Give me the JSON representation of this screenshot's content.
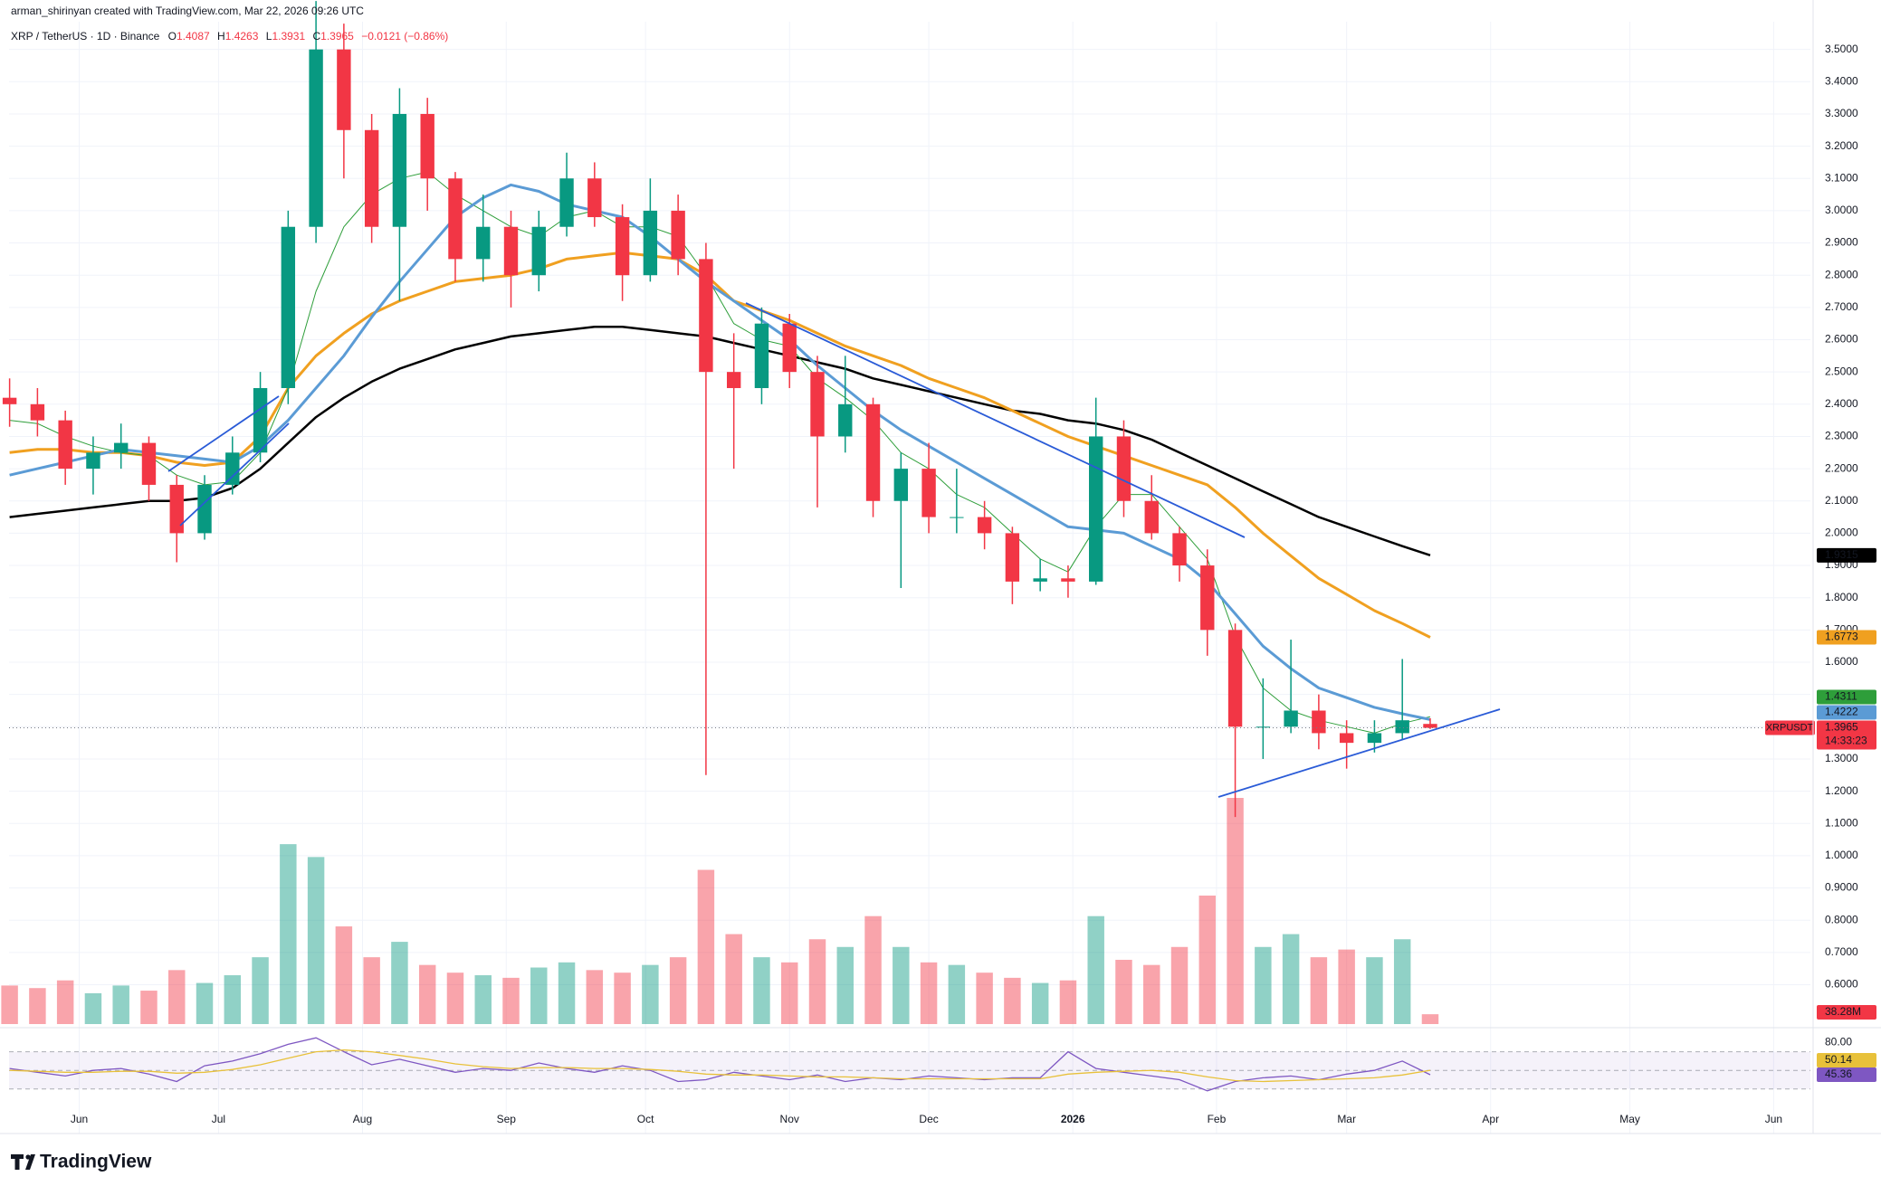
{
  "header": {
    "credit": "arman_shirinyan created with TradingView.com, Mar 22, 2026 09:26 UTC"
  },
  "footer": {
    "brand": "TradingView"
  },
  "chart_data": {
    "type": "candlestick",
    "title": "XRP / TetherUS · 1D · Binance",
    "ohlc_labels": [
      "O",
      "H",
      "L",
      "C"
    ],
    "change": "−0.0121 (−0.86%)",
    "symbol": "XRPUSDT",
    "countdown": "14:33:23",
    "up_color": "#089981",
    "down_color": "#f23645",
    "candles": {
      "open": [
        2.42,
        2.4,
        2.35,
        2.2,
        2.25,
        2.28,
        2.15,
        2.0,
        2.15,
        2.25,
        2.45,
        2.95,
        3.5,
        3.25,
        2.95,
        3.3,
        3.1,
        2.85,
        2.95,
        2.8,
        2.95,
        3.1,
        2.98,
        2.8,
        3.0,
        2.85,
        2.5,
        2.45,
        2.65,
        2.5,
        2.3,
        2.4,
        2.1,
        2.2,
        2.05,
        2.05,
        2.0,
        1.85,
        1.86,
        1.85,
        2.3,
        2.1,
        2.0,
        1.9,
        1.7,
        1.4,
        1.4,
        1.45,
        1.38,
        1.35,
        1.38,
        1.4087
      ],
      "high": [
        2.48,
        2.45,
        2.38,
        2.3,
        2.34,
        2.3,
        2.18,
        2.18,
        2.3,
        2.5,
        3.0,
        3.65,
        3.58,
        3.3,
        3.38,
        3.35,
        3.12,
        3.05,
        3.0,
        3.0,
        3.18,
        3.15,
        3.02,
        3.1,
        3.05,
        2.9,
        2.62,
        2.7,
        2.68,
        2.55,
        2.55,
        2.42,
        2.25,
        2.28,
        2.2,
        2.1,
        2.02,
        1.92,
        1.9,
        2.42,
        2.35,
        2.18,
        2.02,
        1.95,
        1.72,
        1.55,
        1.67,
        1.5,
        1.42,
        1.42,
        1.61,
        1.4263
      ],
      "low": [
        2.33,
        2.3,
        2.15,
        2.12,
        2.2,
        2.1,
        1.91,
        1.98,
        2.12,
        2.22,
        2.4,
        2.9,
        3.1,
        2.9,
        2.72,
        3.0,
        2.78,
        2.78,
        2.7,
        2.75,
        2.92,
        2.95,
        2.72,
        2.78,
        2.8,
        1.25,
        2.2,
        2.4,
        2.45,
        2.08,
        2.25,
        2.05,
        1.83,
        2.0,
        2.0,
        1.95,
        1.78,
        1.82,
        1.8,
        1.84,
        2.05,
        1.98,
        1.85,
        1.62,
        1.12,
        1.3,
        1.38,
        1.33,
        1.27,
        1.32,
        1.36,
        1.3931
      ],
      "close": [
        2.4,
        2.35,
        2.2,
        2.25,
        2.28,
        2.15,
        2.0,
        2.15,
        2.25,
        2.45,
        2.95,
        3.5,
        3.25,
        2.95,
        3.3,
        3.1,
        2.85,
        2.95,
        2.8,
        2.95,
        3.1,
        2.98,
        2.8,
        3.0,
        2.85,
        2.5,
        2.45,
        2.65,
        2.5,
        2.3,
        2.4,
        2.1,
        2.2,
        2.05,
        2.05,
        2.0,
        1.85,
        1.86,
        1.85,
        2.3,
        2.1,
        2.0,
        1.9,
        1.7,
        1.4,
        1.4,
        1.45,
        1.38,
        1.35,
        1.38,
        1.42,
        1.3965
      ]
    },
    "series": [
      {
        "color": "#000000",
        "width": 2.5,
        "values": [
          2.05,
          2.06,
          2.07,
          2.08,
          2.09,
          2.1,
          2.1,
          2.11,
          2.14,
          2.2,
          2.28,
          2.36,
          2.42,
          2.47,
          2.51,
          2.54,
          2.57,
          2.59,
          2.61,
          2.62,
          2.63,
          2.64,
          2.64,
          2.63,
          2.62,
          2.61,
          2.59,
          2.57,
          2.55,
          2.53,
          2.51,
          2.48,
          2.46,
          2.44,
          2.42,
          2.4,
          2.38,
          2.37,
          2.35,
          2.34,
          2.32,
          2.29,
          2.25,
          2.21,
          2.17,
          2.13,
          2.09,
          2.05,
          2.02,
          1.99,
          1.96,
          1.9315
        ]
      },
      {
        "color": "#f0a020",
        "width": 3,
        "values": [
          2.25,
          2.26,
          2.26,
          2.25,
          2.25,
          2.24,
          2.22,
          2.21,
          2.22,
          2.3,
          2.45,
          2.55,
          2.62,
          2.68,
          2.72,
          2.75,
          2.78,
          2.79,
          2.8,
          2.82,
          2.85,
          2.86,
          2.87,
          2.86,
          2.85,
          2.8,
          2.72,
          2.69,
          2.66,
          2.62,
          2.58,
          2.55,
          2.52,
          2.48,
          2.45,
          2.42,
          2.38,
          2.34,
          2.3,
          2.27,
          2.24,
          2.21,
          2.18,
          2.15,
          2.08,
          2.0,
          1.93,
          1.86,
          1.81,
          1.76,
          1.72,
          1.6773
        ]
      },
      {
        "color": "#2e9e3a",
        "width": 1,
        "values": [
          2.35,
          2.34,
          2.3,
          2.27,
          2.25,
          2.24,
          2.18,
          2.15,
          2.16,
          2.25,
          2.45,
          2.75,
          2.95,
          3.05,
          3.1,
          3.12,
          3.05,
          3.0,
          2.95,
          2.92,
          2.98,
          3.0,
          2.95,
          2.95,
          2.92,
          2.8,
          2.65,
          2.6,
          2.58,
          2.48,
          2.42,
          2.35,
          2.25,
          2.2,
          2.12,
          2.08,
          2.0,
          1.92,
          1.88,
          2.02,
          2.12,
          2.12,
          2.02,
          1.92,
          1.68,
          1.52,
          1.45,
          1.42,
          1.4,
          1.38,
          1.41,
          1.4311
        ]
      },
      {
        "color": "#5b9bd5",
        "width": 3,
        "values": [
          2.18,
          2.2,
          2.22,
          2.24,
          2.26,
          2.25,
          2.24,
          2.23,
          2.22,
          2.27,
          2.35,
          2.45,
          2.55,
          2.67,
          2.78,
          2.88,
          2.98,
          3.04,
          3.08,
          3.06,
          3.02,
          3.0,
          2.98,
          2.92,
          2.85,
          2.78,
          2.72,
          2.66,
          2.6,
          2.52,
          2.45,
          2.38,
          2.32,
          2.27,
          2.22,
          2.17,
          2.12,
          2.07,
          2.02,
          2.01,
          2.0,
          1.96,
          1.92,
          1.85,
          1.75,
          1.65,
          1.58,
          1.52,
          1.49,
          1.46,
          1.44,
          1.4222
        ]
      }
    ],
    "volume": {
      "values": [
        150,
        140,
        170,
        120,
        150,
        130,
        210,
        160,
        190,
        260,
        700,
        650,
        380,
        260,
        320,
        230,
        200,
        190,
        180,
        220,
        240,
        210,
        200,
        230,
        260,
        600,
        350,
        260,
        240,
        330,
        300,
        420,
        300,
        240,
        230,
        200,
        180,
        160,
        170,
        420,
        250,
        230,
        300,
        500,
        880,
        300,
        350,
        260,
        290,
        260,
        330,
        38.28
      ],
      "value_labels": [
        null,
        null,
        null,
        null,
        null,
        null,
        null,
        null,
        null,
        null,
        null,
        null,
        null,
        null,
        null,
        null,
        null,
        null,
        null,
        null,
        null,
        null,
        null,
        null,
        null,
        null,
        null,
        null,
        null,
        null,
        null,
        null,
        null,
        null,
        null,
        null,
        null,
        null,
        null,
        null,
        null,
        null,
        null,
        null,
        null,
        null,
        null,
        null,
        null,
        null,
        null,
        "38.28M"
      ]
    },
    "rsi": {
      "ylim": [
        22,
        92
      ],
      "yticks": [
        {
          "value": 80,
          "label": "80.00"
        }
      ],
      "bands": [
        70,
        50,
        30
      ],
      "series": [
        {
          "color": "#7e57c2",
          "values": [
            52,
            48,
            44,
            50,
            52,
            46,
            38,
            55,
            60,
            68,
            78,
            85,
            70,
            56,
            62,
            55,
            48,
            52,
            50,
            58,
            52,
            48,
            55,
            50,
            38,
            40,
            48,
            44,
            40,
            45,
            38,
            42,
            40,
            44,
            42,
            40,
            42,
            42,
            70,
            52,
            48,
            44,
            40,
            28,
            38,
            42,
            44,
            40,
            46,
            50,
            60,
            45.36
          ]
        },
        {
          "color": "#e8c13a",
          "values": [
            50,
            49,
            48,
            48,
            49,
            49,
            47,
            48,
            51,
            56,
            63,
            70,
            72,
            70,
            66,
            62,
            57,
            54,
            52,
            53,
            53,
            52,
            52,
            51,
            49,
            46,
            45,
            45,
            44,
            43,
            43,
            42,
            41,
            41,
            41,
            41,
            41,
            41,
            46,
            48,
            49,
            50,
            48,
            43,
            39,
            38,
            39,
            40,
            41,
            42,
            45,
            50.14
          ]
        }
      ]
    },
    "xlim": [
      -0.02,
      64.65
    ],
    "xticks": [
      {
        "value": 2.5,
        "label": "Jun"
      },
      {
        "value": 7.5,
        "label": "Jul"
      },
      {
        "value": 12.67,
        "label": "Aug"
      },
      {
        "value": 17.83,
        "label": "Sep"
      },
      {
        "value": 22.83,
        "label": "Oct"
      },
      {
        "value": 28,
        "label": "Nov"
      },
      {
        "value": 33,
        "label": "Dec"
      },
      {
        "value": 38.17,
        "label": "2026"
      },
      {
        "value": 43.33,
        "label": "Feb"
      },
      {
        "value": 48,
        "label": "Mar"
      },
      {
        "value": 53.17,
        "label": "Apr"
      },
      {
        "value": 58.17,
        "label": "May"
      },
      {
        "value": 63.33,
        "label": "Jun"
      }
    ],
    "ylim": [
      0.478,
      3.586
    ],
    "yticks": [
      {
        "value": 3.5,
        "label": "3.5000"
      },
      {
        "value": 3.4,
        "label": "3.4000"
      },
      {
        "value": 3.3,
        "label": "3.3000"
      },
      {
        "value": 3.2,
        "label": "3.2000"
      },
      {
        "value": 3.1,
        "label": "3.1000"
      },
      {
        "value": 3.0,
        "label": "3.0000"
      },
      {
        "value": 2.9,
        "label": "2.9000"
      },
      {
        "value": 2.8,
        "label": "2.8000"
      },
      {
        "value": 2.7,
        "label": "2.7000"
      },
      {
        "value": 2.6,
        "label": "2.6000"
      },
      {
        "value": 2.5,
        "label": "2.5000"
      },
      {
        "value": 2.4,
        "label": "2.4000"
      },
      {
        "value": 2.3,
        "label": "2.3000"
      },
      {
        "value": 2.2,
        "label": "2.2000"
      },
      {
        "value": 2.1,
        "label": "2.1000"
      },
      {
        "value": 2.0,
        "label": "2.0000"
      },
      {
        "value": 1.9,
        "label": "1.9000"
      },
      {
        "value": 1.8,
        "label": "1.8000"
      },
      {
        "value": 1.7,
        "label": "1.7000"
      },
      {
        "value": 1.6,
        "label": "1.6000"
      },
      {
        "value": 1.5,
        "label": "1.5000"
      },
      {
        "value": 1.4,
        "label": "1.4000"
      },
      {
        "value": 1.3,
        "label": "1.3000"
      },
      {
        "value": 1.2,
        "label": "1.2000"
      },
      {
        "value": 1.1,
        "label": "1.1000"
      },
      {
        "value": 1.0,
        "label": "1.0000"
      },
      {
        "value": 0.9,
        "label": "0.9000"
      },
      {
        "value": 0.8,
        "label": "0.8000"
      },
      {
        "value": 0.7,
        "label": "0.7000"
      },
      {
        "value": 0.6,
        "label": "0.6000"
      }
    ],
    "grid": true
  }
}
